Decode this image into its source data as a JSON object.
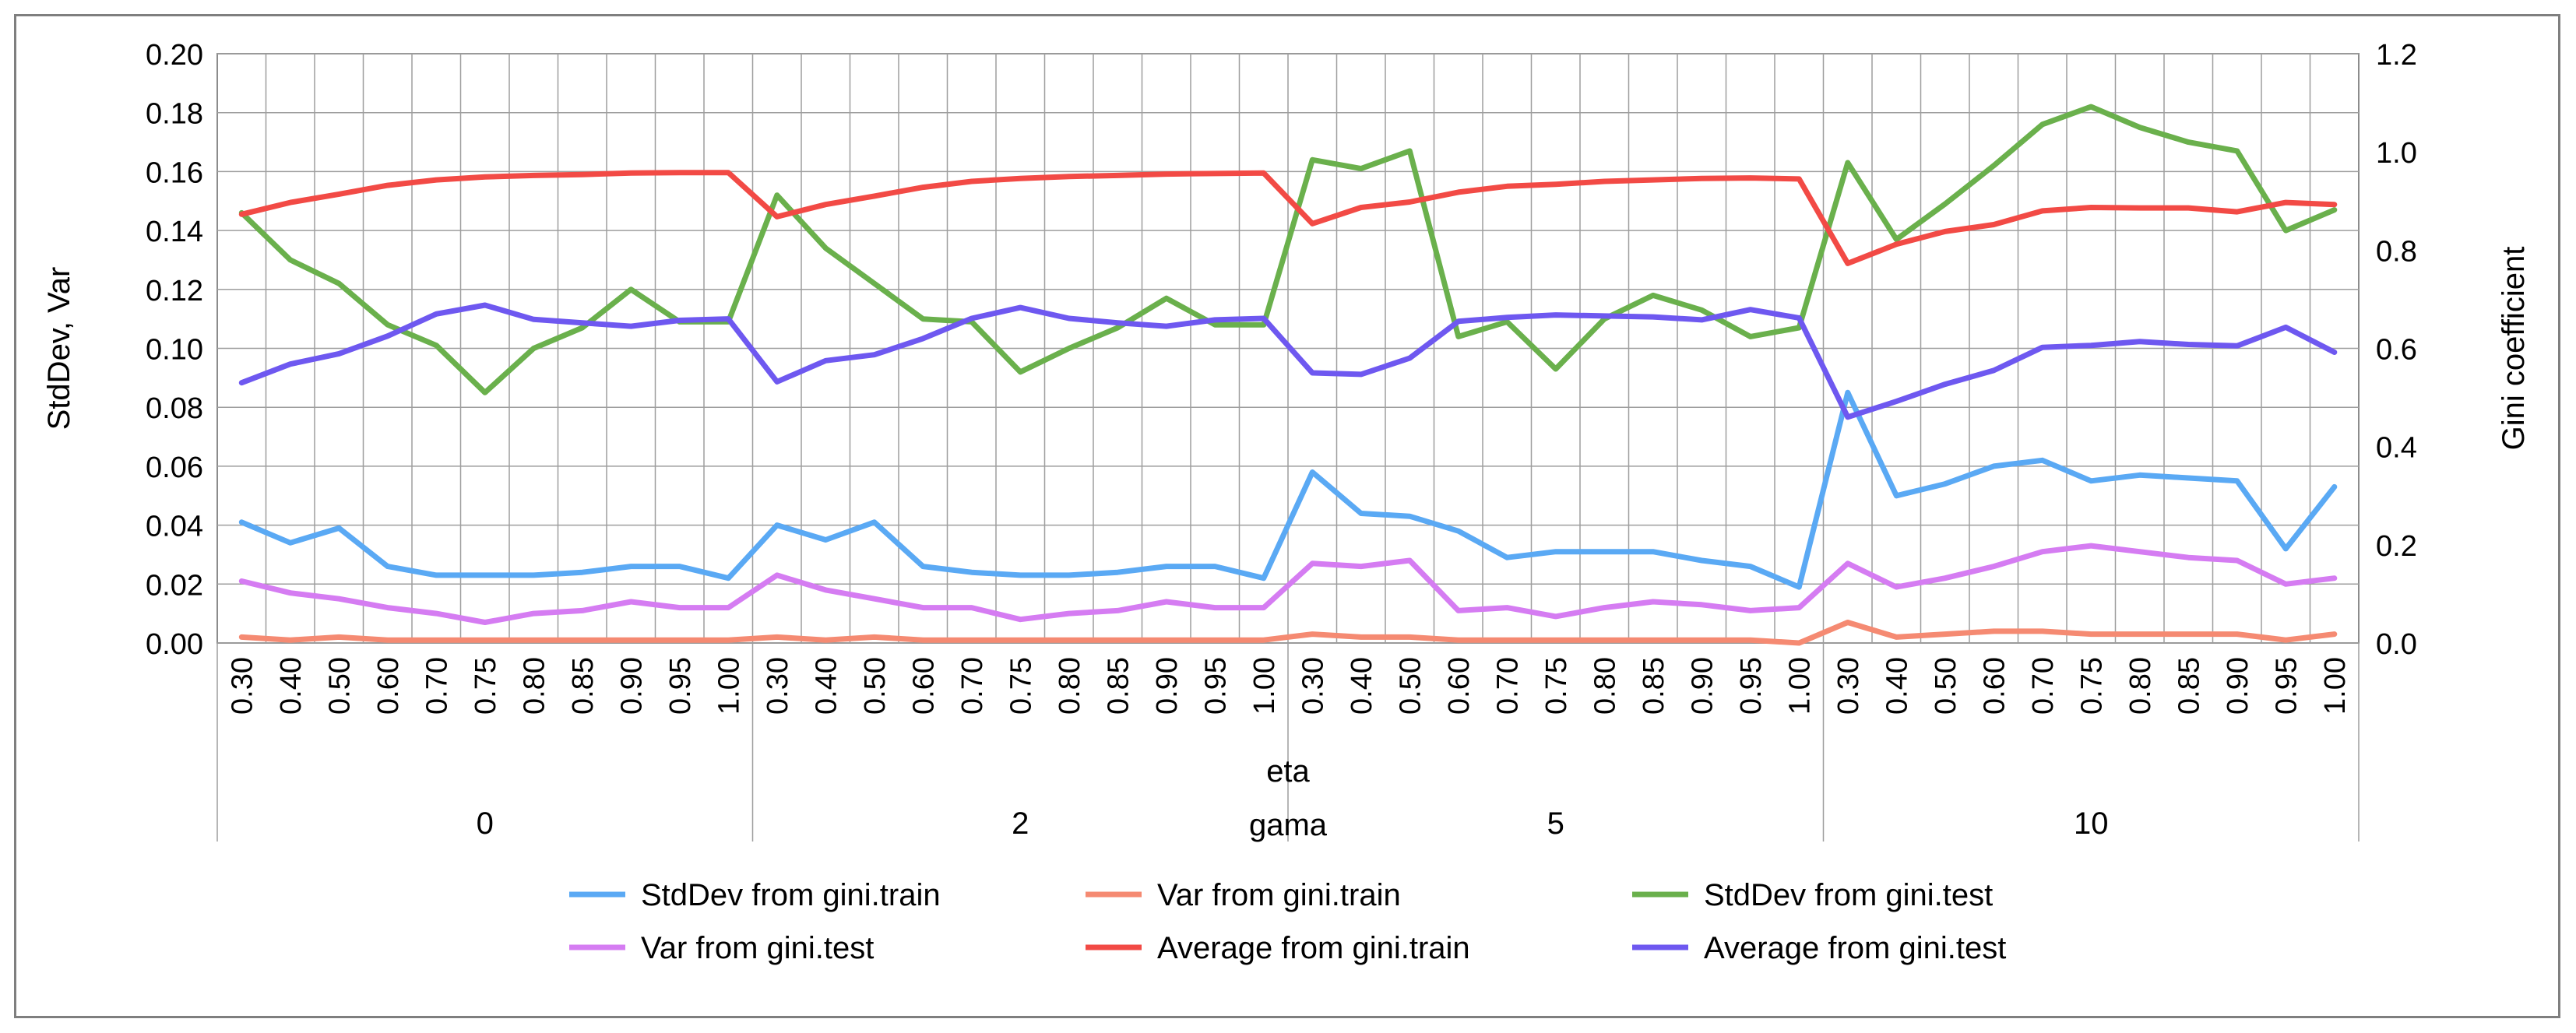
{
  "chart_data": {
    "type": "line",
    "y_left_label": "StdDev, Var",
    "y_right_label": "Gini coefficient",
    "y_left_lim": [
      0,
      0.2
    ],
    "y_left_ticks": [
      "0.00",
      "0.02",
      "0.04",
      "0.06",
      "0.08",
      "0.10",
      "0.12",
      "0.14",
      "0.16",
      "0.18",
      "0.20"
    ],
    "y_right_lim": [
      0,
      1.2
    ],
    "y_right_ticks": [
      "0.0",
      "0.2",
      "0.4",
      "0.6",
      "0.8",
      "1.0",
      "1.2"
    ],
    "x_axis_title_inner": "eta",
    "x_axis_title_outer": "gama",
    "eta_values": [
      "0.30",
      "0.40",
      "0.50",
      "0.60",
      "0.70",
      "0.75",
      "0.80",
      "0.85",
      "0.90",
      "0.95",
      "1.00"
    ],
    "gama_groups": [
      "0",
      "2",
      "5",
      "10"
    ],
    "series": [
      {
        "name": "StdDev from gini.train",
        "axis": "left",
        "color": "#5aa9f4",
        "values": [
          0.041,
          0.034,
          0.039,
          0.026,
          0.023,
          0.023,
          0.023,
          0.024,
          0.026,
          0.026,
          0.022,
          0.04,
          0.035,
          0.041,
          0.026,
          0.024,
          0.023,
          0.023,
          0.024,
          0.026,
          0.026,
          0.022,
          0.058,
          0.044,
          0.043,
          0.038,
          0.029,
          0.031,
          0.031,
          0.031,
          0.028,
          0.026,
          0.019,
          0.085,
          0.05,
          0.054,
          0.06,
          0.062,
          0.055,
          0.057,
          0.056,
          0.055,
          0.032,
          0.053
        ]
      },
      {
        "name": "Var from gini.train",
        "axis": "left",
        "color": "#f58a72",
        "values": [
          0.002,
          0.001,
          0.002,
          0.001,
          0.001,
          0.001,
          0.001,
          0.001,
          0.001,
          0.001,
          0.001,
          0.002,
          0.001,
          0.002,
          0.001,
          0.001,
          0.001,
          0.001,
          0.001,
          0.001,
          0.001,
          0.001,
          0.003,
          0.002,
          0.002,
          0.001,
          0.001,
          0.001,
          0.001,
          0.001,
          0.001,
          0.001,
          0.0,
          0.007,
          0.002,
          0.003,
          0.004,
          0.004,
          0.003,
          0.003,
          0.003,
          0.003,
          0.001,
          0.003
        ]
      },
      {
        "name": "StdDev from gini.test",
        "axis": "left",
        "color": "#6ab04c",
        "values": [
          0.146,
          0.13,
          0.122,
          0.108,
          0.101,
          0.085,
          0.1,
          0.107,
          0.12,
          0.109,
          0.109,
          0.152,
          0.134,
          0.122,
          0.11,
          0.109,
          0.092,
          0.1,
          0.107,
          0.117,
          0.108,
          0.108,
          0.164,
          0.161,
          0.167,
          0.104,
          0.109,
          0.093,
          0.11,
          0.118,
          0.113,
          0.104,
          0.107,
          0.163,
          0.137,
          0.149,
          0.162,
          0.176,
          0.182,
          0.175,
          0.17,
          0.167,
          0.14,
          0.147
        ]
      },
      {
        "name": "Var from gini.test",
        "axis": "left",
        "color": "#d57cf2",
        "values": [
          0.021,
          0.017,
          0.015,
          0.012,
          0.01,
          0.007,
          0.01,
          0.011,
          0.014,
          0.012,
          0.012,
          0.023,
          0.018,
          0.015,
          0.012,
          0.012,
          0.008,
          0.01,
          0.011,
          0.014,
          0.012,
          0.012,
          0.027,
          0.026,
          0.028,
          0.011,
          0.012,
          0.009,
          0.012,
          0.014,
          0.013,
          0.011,
          0.012,
          0.027,
          0.019,
          0.022,
          0.026,
          0.031,
          0.033,
          0.031,
          0.029,
          0.028,
          0.02,
          0.022
        ]
      },
      {
        "name": "Average from gini.train",
        "axis": "right",
        "color": "#f24a45",
        "values": [
          0.873,
          0.897,
          0.914,
          0.932,
          0.943,
          0.949,
          0.952,
          0.954,
          0.957,
          0.958,
          0.958,
          0.868,
          0.893,
          0.91,
          0.928,
          0.94,
          0.946,
          0.95,
          0.952,
          0.955,
          0.956,
          0.957,
          0.854,
          0.887,
          0.898,
          0.918,
          0.93,
          0.934,
          0.94,
          0.943,
          0.946,
          0.947,
          0.945,
          0.773,
          0.812,
          0.838,
          0.852,
          0.88,
          0.887,
          0.886,
          0.886,
          0.878,
          0.897,
          0.893
        ]
      },
      {
        "name": "Average from gini.test",
        "axis": "right",
        "color": "#6e58f0",
        "values": [
          0.53,
          0.568,
          0.589,
          0.625,
          0.67,
          0.688,
          0.659,
          0.652,
          0.645,
          0.657,
          0.66,
          0.532,
          0.575,
          0.587,
          0.62,
          0.661,
          0.683,
          0.661,
          0.652,
          0.645,
          0.658,
          0.661,
          0.55,
          0.547,
          0.58,
          0.655,
          0.663,
          0.668,
          0.666,
          0.664,
          0.658,
          0.679,
          0.662,
          0.46,
          0.492,
          0.527,
          0.555,
          0.602,
          0.606,
          0.614,
          0.608,
          0.605,
          0.643,
          0.592
        ]
      }
    ]
  }
}
